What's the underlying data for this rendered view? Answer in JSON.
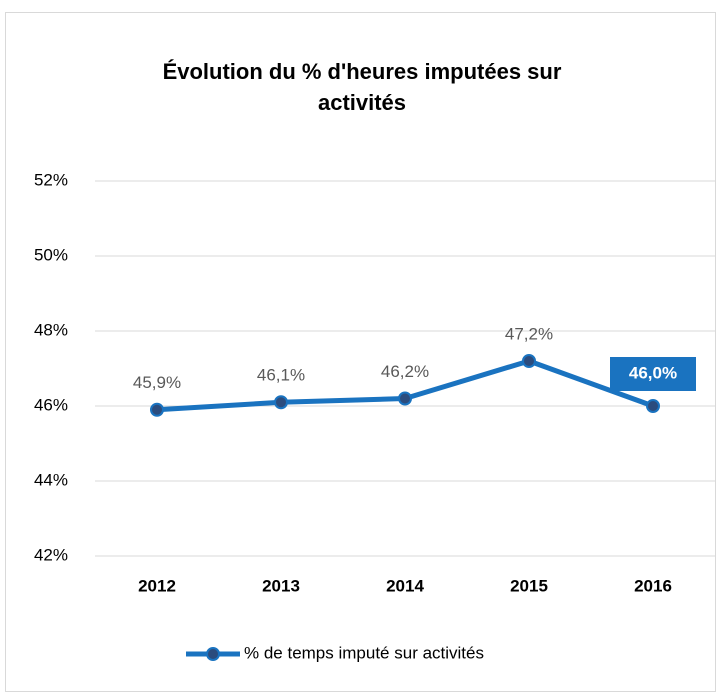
{
  "chart_data": {
    "type": "line",
    "title": "Évolution du % d'heures imputées sur activités",
    "categories": [
      "2012",
      "2013",
      "2014",
      "2015",
      "2016"
    ],
    "series": [
      {
        "name": "% de temps imputé sur activités",
        "color": "#1a73c0",
        "values": [
          45.9,
          46.1,
          46.2,
          47.2,
          46.0
        ],
        "value_labels": [
          "45,9%",
          "46,1%",
          "46,2%",
          "47,2%",
          "46,0%"
        ]
      }
    ],
    "ylim": [
      42,
      52
    ],
    "yticks": [
      {
        "value": 42,
        "label": "42%"
      },
      {
        "value": 44,
        "label": "44%"
      },
      {
        "value": 46,
        "label": "46%"
      },
      {
        "value": 48,
        "label": "48%"
      },
      {
        "value": 50,
        "label": "50%"
      },
      {
        "value": 52,
        "label": "52%"
      }
    ],
    "grid": true,
    "legend": "bottom"
  }
}
